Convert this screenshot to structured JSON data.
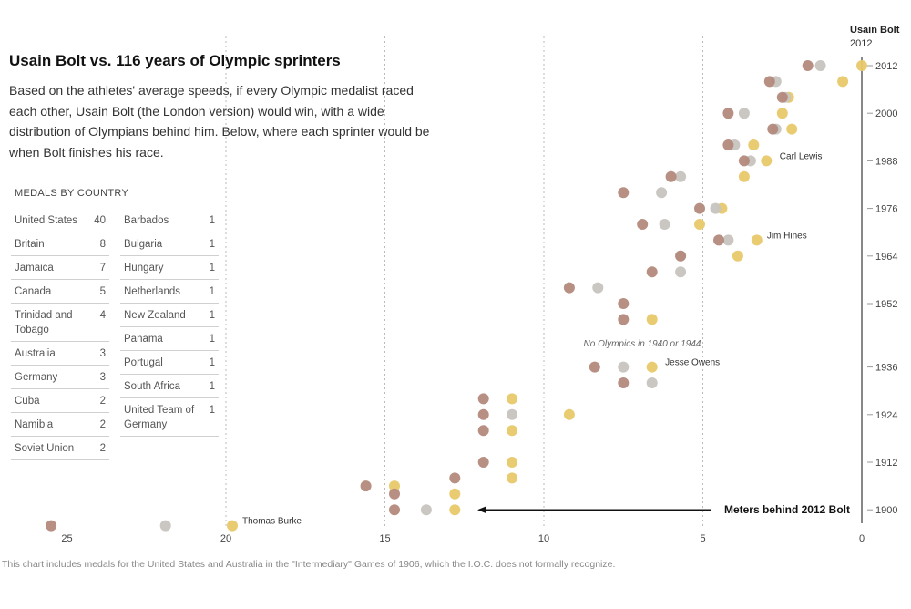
{
  "title": "Usain Bolt vs. 116 years of Olympic sprinters",
  "subtitle": "Based on the athletes' average speeds, if every Olympic medalist raced each other, Usain Bolt (the London version) would win, with a wide distribution of Olympians behind him. Below, where each sprinter would be when Bolt finishes his race.",
  "medals": {
    "title": "MEDALS BY COUNTRY",
    "left": [
      {
        "country": "United States",
        "count": "40"
      },
      {
        "country": "Britain",
        "count": "8"
      },
      {
        "country": "Jamaica",
        "count": "7"
      },
      {
        "country": "Canada",
        "count": "5"
      },
      {
        "country": "Trinidad and Tobago",
        "count": "4"
      },
      {
        "country": "Australia",
        "count": "3"
      },
      {
        "country": "Germany",
        "count": "3"
      },
      {
        "country": "Cuba",
        "count": "2"
      },
      {
        "country": "Namibia",
        "count": "2"
      },
      {
        "country": "Soviet Union",
        "count": "2"
      }
    ],
    "right": [
      {
        "country": "Barbados",
        "count": "1"
      },
      {
        "country": "Bulgaria",
        "count": "1"
      },
      {
        "country": "Hungary",
        "count": "1"
      },
      {
        "country": "Netherlands",
        "count": "1"
      },
      {
        "country": "New Zealand",
        "count": "1"
      },
      {
        "country": "Panama",
        "count": "1"
      },
      {
        "country": "Portugal",
        "count": "1"
      },
      {
        "country": "South Africa",
        "count": "1"
      },
      {
        "country": "United Team of Germany",
        "count": "1"
      }
    ]
  },
  "footnote": "This chart includes medals for the United States and Australia in the \"Intermediary\" Games of 1906, which the I.O.C. does not formally recognize.",
  "colors": {
    "gold": "#e8c96a",
    "silver": "#c7c4c0",
    "bronze": "#b38a7c",
    "axis": "#888888",
    "grid": "#bbbbbb"
  },
  "chart_data": {
    "type": "scatter",
    "xlabel": "Meters behind 2012 Bolt",
    "xlim": [
      25,
      0
    ],
    "x_ticks": [
      25,
      20,
      15,
      10,
      5,
      0
    ],
    "ylim": [
      1896,
      2012
    ],
    "y_ticks": [
      2012,
      2000,
      1988,
      1976,
      1964,
      1952,
      1936,
      1924,
      1912,
      1900
    ],
    "bolt_label": "Usain Bolt",
    "bolt_year": "2012",
    "gap_note": "No Olympics in 1940 or 1944",
    "annotations": [
      {
        "text": "Carl Lewis",
        "x": 2.9,
        "year": 1988
      },
      {
        "text": "Jim Hines",
        "x": 3.3,
        "year": 1968
      },
      {
        "text": "Jesse Owens",
        "x": 6.5,
        "year": 1936
      },
      {
        "text": "Thomas Burke",
        "x": 19.8,
        "year": 1896
      }
    ],
    "points": [
      {
        "year": 2012,
        "medal": "gold",
        "x": 0.0
      },
      {
        "year": 2012,
        "medal": "silver",
        "x": 1.3
      },
      {
        "year": 2012,
        "medal": "bronze",
        "x": 1.7
      },
      {
        "year": 2008,
        "medal": "gold",
        "x": 0.6
      },
      {
        "year": 2008,
        "medal": "silver",
        "x": 2.7
      },
      {
        "year": 2008,
        "medal": "bronze",
        "x": 2.9
      },
      {
        "year": 2004,
        "medal": "gold",
        "x": 2.3
      },
      {
        "year": 2004,
        "medal": "silver",
        "x": 2.4
      },
      {
        "year": 2004,
        "medal": "bronze",
        "x": 2.5
      },
      {
        "year": 2000,
        "medal": "gold",
        "x": 2.5
      },
      {
        "year": 2000,
        "medal": "silver",
        "x": 3.7
      },
      {
        "year": 2000,
        "medal": "bronze",
        "x": 4.2
      },
      {
        "year": 1996,
        "medal": "gold",
        "x": 2.2
      },
      {
        "year": 1996,
        "medal": "silver",
        "x": 2.7
      },
      {
        "year": 1996,
        "medal": "bronze",
        "x": 2.8
      },
      {
        "year": 1992,
        "medal": "gold",
        "x": 3.4
      },
      {
        "year": 1992,
        "medal": "silver",
        "x": 4.0
      },
      {
        "year": 1992,
        "medal": "bronze",
        "x": 4.2
      },
      {
        "year": 1988,
        "medal": "gold",
        "x": 3.0
      },
      {
        "year": 1988,
        "medal": "silver",
        "x": 3.5
      },
      {
        "year": 1988,
        "medal": "bronze",
        "x": 3.7
      },
      {
        "year": 1984,
        "medal": "gold",
        "x": 3.7
      },
      {
        "year": 1984,
        "medal": "silver",
        "x": 5.7
      },
      {
        "year": 1984,
        "medal": "bronze",
        "x": 6.0
      },
      {
        "year": 1980,
        "medal": "silver",
        "x": 6.3
      },
      {
        "year": 1980,
        "medal": "bronze",
        "x": 7.5
      },
      {
        "year": 1976,
        "medal": "gold",
        "x": 4.4
      },
      {
        "year": 1976,
        "medal": "silver",
        "x": 4.6
      },
      {
        "year": 1976,
        "medal": "bronze",
        "x": 5.1
      },
      {
        "year": 1972,
        "medal": "gold",
        "x": 5.1
      },
      {
        "year": 1972,
        "medal": "silver",
        "x": 6.2
      },
      {
        "year": 1972,
        "medal": "bronze",
        "x": 6.9
      },
      {
        "year": 1968,
        "medal": "gold",
        "x": 3.3
      },
      {
        "year": 1968,
        "medal": "silver",
        "x": 4.2
      },
      {
        "year": 1968,
        "medal": "bronze",
        "x": 4.5
      },
      {
        "year": 1964,
        "medal": "gold",
        "x": 3.9
      },
      {
        "year": 1964,
        "medal": "silver",
        "x": 5.7
      },
      {
        "year": 1964,
        "medal": "bronze",
        "x": 5.7
      },
      {
        "year": 1960,
        "medal": "silver",
        "x": 5.7
      },
      {
        "year": 1960,
        "medal": "bronze",
        "x": 6.6
      },
      {
        "year": 1956,
        "medal": "silver",
        "x": 8.3
      },
      {
        "year": 1956,
        "medal": "bronze",
        "x": 9.2
      },
      {
        "year": 1952,
        "medal": "bronze",
        "x": 7.5
      },
      {
        "year": 1948,
        "medal": "gold",
        "x": 6.6
      },
      {
        "year": 1948,
        "medal": "bronze",
        "x": 7.5
      },
      {
        "year": 1936,
        "medal": "gold",
        "x": 6.6
      },
      {
        "year": 1936,
        "medal": "silver",
        "x": 7.5
      },
      {
        "year": 1936,
        "medal": "bronze",
        "x": 8.4
      },
      {
        "year": 1932,
        "medal": "silver",
        "x": 6.6
      },
      {
        "year": 1932,
        "medal": "bronze",
        "x": 7.5
      },
      {
        "year": 1928,
        "medal": "gold",
        "x": 11.0
      },
      {
        "year": 1928,
        "medal": "bronze",
        "x": 11.9
      },
      {
        "year": 1924,
        "medal": "gold",
        "x": 9.2
      },
      {
        "year": 1924,
        "medal": "silver",
        "x": 11.0
      },
      {
        "year": 1924,
        "medal": "bronze",
        "x": 11.9
      },
      {
        "year": 1920,
        "medal": "gold",
        "x": 11.0
      },
      {
        "year": 1920,
        "medal": "bronze",
        "x": 11.9
      },
      {
        "year": 1912,
        "medal": "gold",
        "x": 11.0
      },
      {
        "year": 1912,
        "medal": "bronze",
        "x": 11.9
      },
      {
        "year": 1908,
        "medal": "gold",
        "x": 11.0
      },
      {
        "year": 1908,
        "medal": "bronze",
        "x": 12.8
      },
      {
        "year": 1906,
        "medal": "gold",
        "x": 14.7
      },
      {
        "year": 1906,
        "medal": "bronze",
        "x": 15.6
      },
      {
        "year": 1904,
        "medal": "gold",
        "x": 12.8
      },
      {
        "year": 1904,
        "medal": "bronze",
        "x": 14.7
      },
      {
        "year": 1900,
        "medal": "gold",
        "x": 12.8
      },
      {
        "year": 1900,
        "medal": "silver",
        "x": 13.7
      },
      {
        "year": 1900,
        "medal": "bronze",
        "x": 14.7
      },
      {
        "year": 1896,
        "medal": "gold",
        "x": 19.8
      },
      {
        "year": 1896,
        "medal": "silver",
        "x": 21.9
      },
      {
        "year": 1896,
        "medal": "bronze",
        "x": 25.5
      }
    ]
  }
}
